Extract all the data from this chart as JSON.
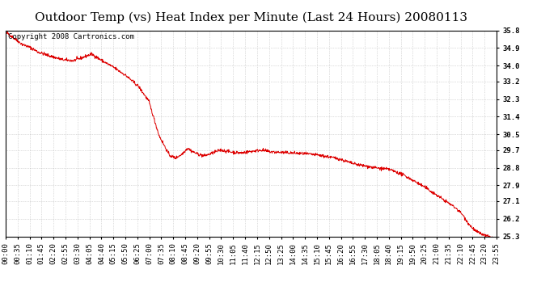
{
  "title": "Outdoor Temp (vs) Heat Index per Minute (Last 24 Hours) 20080113",
  "copyright_text": "Copyright 2008 Cartronics.com",
  "line_color": "#dd0000",
  "background_color": "#ffffff",
  "grid_color": "#aaaaaa",
  "y_min": 25.3,
  "y_max": 35.8,
  "y_ticks": [
    25.3,
    26.2,
    27.1,
    27.9,
    28.8,
    29.7,
    30.5,
    31.4,
    32.3,
    33.2,
    34.0,
    34.9,
    35.8
  ],
  "x_tick_labels": [
    "00:00",
    "00:35",
    "01:10",
    "01:45",
    "02:20",
    "02:55",
    "03:30",
    "04:05",
    "04:40",
    "05:15",
    "05:50",
    "06:25",
    "07:00",
    "07:35",
    "08:10",
    "08:45",
    "09:20",
    "09:55",
    "10:30",
    "11:05",
    "11:40",
    "12:15",
    "12:50",
    "13:25",
    "14:00",
    "14:35",
    "15:10",
    "15:45",
    "16:20",
    "16:55",
    "17:30",
    "18:05",
    "18:40",
    "19:15",
    "19:50",
    "20:25",
    "21:00",
    "21:35",
    "22:10",
    "22:45",
    "23:20",
    "23:55"
  ],
  "title_fontsize": 11,
  "tick_fontsize": 6.5,
  "copyright_fontsize": 6.5
}
